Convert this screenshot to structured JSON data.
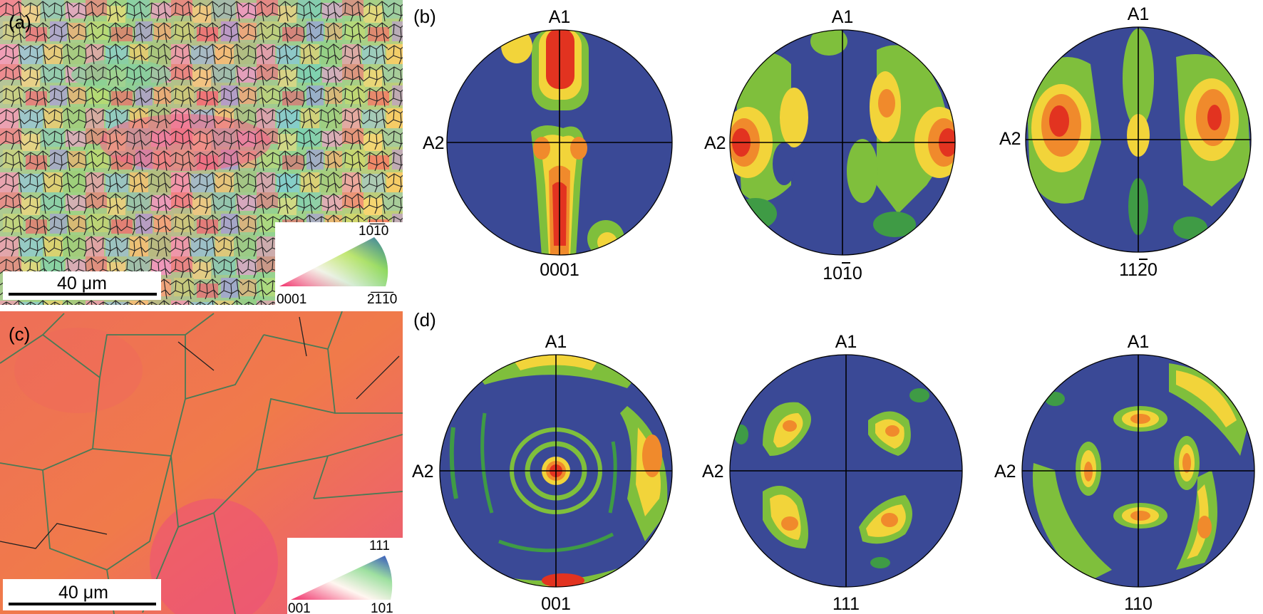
{
  "panels": {
    "a": {
      "label": "(a)",
      "scale_bar": "40 μm",
      "key": {
        "top": "10̅1̅0",
        "left": "0001",
        "right": "2̅1̅1̅0"
      },
      "key_text": {
        "top": "1010",
        "left": "0001",
        "right": "2110"
      }
    },
    "b": {
      "label": "(b)",
      "axis_top": "A1",
      "axis_left": "A2",
      "poles": [
        "0001",
        "1010",
        "1120"
      ]
    },
    "c": {
      "label": "(c)",
      "scale_bar": "40 μm",
      "key": {
        "top": "111",
        "left": "001",
        "right": "101"
      }
    },
    "d": {
      "label": "(d)",
      "axis_top": "A1",
      "axis_left": "A2",
      "poles": [
        "001",
        "111",
        "110"
      ]
    }
  },
  "colors": {
    "pf_background": "#3a4996",
    "pf_low": "#3f9b45",
    "pf_mid_low": "#7fbf3c",
    "pf_mid": "#f2d43a",
    "pf_high": "#f08a2c",
    "pf_max": "#e23320",
    "fcc_map_base": "#ec6a50"
  }
}
